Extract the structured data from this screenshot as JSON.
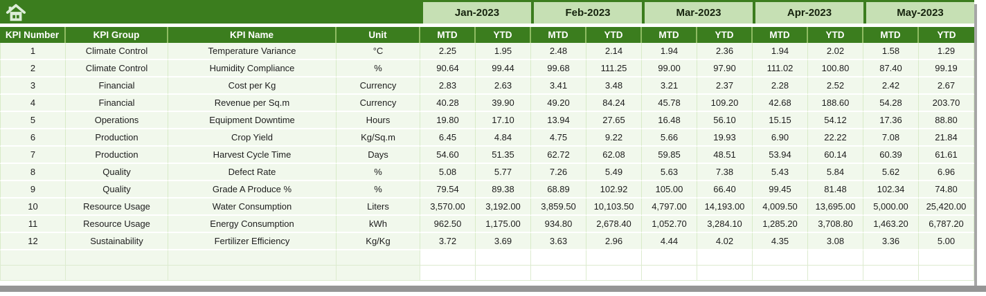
{
  "months": [
    "Jan-2023",
    "Feb-2023",
    "Mar-2023",
    "Apr-2023",
    "May-2023"
  ],
  "period_labels": {
    "mtd": "MTD",
    "ytd": "YTD"
  },
  "column_headers": [
    "KPI Number",
    "KPI Group",
    "KPI Name",
    "Unit"
  ],
  "rows": [
    {
      "number": "1",
      "group": "Climate Control",
      "name": "Temperature Variance",
      "unit": "°C",
      "values": [
        "2.25",
        "1.95",
        "2.48",
        "2.14",
        "1.94",
        "2.36",
        "1.94",
        "2.02",
        "1.58",
        "1.29"
      ]
    },
    {
      "number": "2",
      "group": "Climate Control",
      "name": "Humidity Compliance",
      "unit": "%",
      "values": [
        "90.64",
        "99.44",
        "99.68",
        "111.25",
        "99.00",
        "97.90",
        "111.02",
        "100.80",
        "87.40",
        "99.19"
      ]
    },
    {
      "number": "3",
      "group": "Financial",
      "name": "Cost per Kg",
      "unit": "Currency",
      "values": [
        "2.83",
        "2.63",
        "3.41",
        "3.48",
        "3.21",
        "2.37",
        "2.28",
        "2.52",
        "2.42",
        "2.67"
      ]
    },
    {
      "number": "4",
      "group": "Financial",
      "name": "Revenue per Sq.m",
      "unit": "Currency",
      "values": [
        "40.28",
        "39.90",
        "49.20",
        "84.24",
        "45.78",
        "109.20",
        "42.68",
        "188.60",
        "54.28",
        "203.70"
      ]
    },
    {
      "number": "5",
      "group": "Operations",
      "name": "Equipment Downtime",
      "unit": "Hours",
      "values": [
        "19.80",
        "17.10",
        "13.94",
        "27.65",
        "16.48",
        "56.10",
        "15.15",
        "54.12",
        "17.36",
        "88.80"
      ]
    },
    {
      "number": "6",
      "group": "Production",
      "name": "Crop Yield",
      "unit": "Kg/Sq.m",
      "values": [
        "6.45",
        "4.84",
        "4.75",
        "9.22",
        "5.66",
        "19.93",
        "6.90",
        "22.22",
        "7.08",
        "21.84"
      ]
    },
    {
      "number": "7",
      "group": "Production",
      "name": "Harvest Cycle Time",
      "unit": "Days",
      "values": [
        "54.60",
        "51.35",
        "62.72",
        "62.08",
        "59.85",
        "48.51",
        "53.94",
        "60.14",
        "60.39",
        "61.61"
      ]
    },
    {
      "number": "8",
      "group": "Quality",
      "name": "Defect Rate",
      "unit": "%",
      "values": [
        "5.08",
        "5.77",
        "7.26",
        "5.49",
        "5.63",
        "7.38",
        "5.43",
        "5.84",
        "5.62",
        "6.96"
      ]
    },
    {
      "number": "9",
      "group": "Quality",
      "name": "Grade A Produce %",
      "unit": "%",
      "values": [
        "79.54",
        "89.38",
        "68.89",
        "102.92",
        "105.00",
        "66.40",
        "99.45",
        "81.48",
        "102.34",
        "74.80"
      ]
    },
    {
      "number": "10",
      "group": "Resource Usage",
      "name": "Water Consumption",
      "unit": "Liters",
      "values": [
        "3,570.00",
        "3,192.00",
        "3,859.50",
        "10,103.50",
        "4,797.00",
        "14,193.00",
        "4,009.50",
        "13,695.00",
        "5,000.00",
        "25,420.00"
      ]
    },
    {
      "number": "11",
      "group": "Resource Usage",
      "name": "Energy Consumption",
      "unit": "kWh",
      "values": [
        "962.50",
        "1,175.00",
        "934.80",
        "2,678.40",
        "1,052.70",
        "3,284.10",
        "1,285.20",
        "3,708.80",
        "1,463.20",
        "6,787.20"
      ]
    },
    {
      "number": "12",
      "group": "Sustainability",
      "name": "Fertilizer Efficiency",
      "unit": "Kg/Kg",
      "values": [
        "3.72",
        "3.69",
        "3.63",
        "2.96",
        "4.44",
        "4.02",
        "4.35",
        "3.08",
        "3.36",
        "5.00"
      ]
    }
  ],
  "empty_row_count": 2,
  "icons": {
    "corner": "home-icon"
  },
  "colors": {
    "header_dark_green": "#3B7D1E",
    "month_light_green": "#C6E0B4",
    "row_bg_light_green": "#F1F8EC",
    "grid_line_green": "#D8EBC8",
    "header_text_white": "#FFFFFF",
    "body_text": "#1C1C1C",
    "scrollbar_gray": "#959595"
  }
}
